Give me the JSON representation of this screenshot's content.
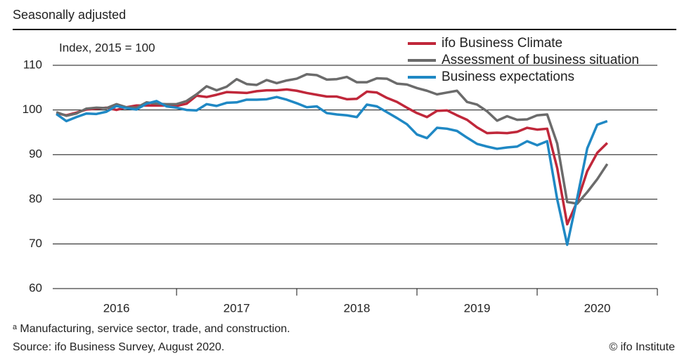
{
  "chart_data": {
    "type": "line",
    "title": "Seasonally adjusted",
    "annotation": "Index, 2015 = 100",
    "footnote": "ᵃ Manufacturing, service sector, trade, and construction.",
    "source": "Source: ifo Business Survey, August 2020.",
    "copyright": "© ifo Institute",
    "x": [
      2016,
      2016.0833,
      2016.1667,
      2016.25,
      2016.3333,
      2016.4167,
      2016.5,
      2016.5833,
      2016.6667,
      2016.75,
      2016.8333,
      2016.9167,
      2017,
      2017.0833,
      2017.1667,
      2017.25,
      2017.3333,
      2017.4167,
      2017.5,
      2017.5833,
      2017.6667,
      2017.75,
      2017.8333,
      2017.9167,
      2018,
      2018.0833,
      2018.1667,
      2018.25,
      2018.3333,
      2018.4167,
      2018.5,
      2018.5833,
      2018.6667,
      2018.75,
      2018.8333,
      2018.9167,
      2019,
      2019.0833,
      2019.1667,
      2019.25,
      2019.3333,
      2019.4167,
      2019.5,
      2019.5833,
      2019.6667,
      2019.75,
      2019.8333,
      2019.9167,
      2020,
      2020.0833,
      2020.1667,
      2020.25,
      2020.3333,
      2020.4167,
      2020.5,
      2020.5833
    ],
    "xlim": [
      2015.97,
      2021
    ],
    "xticks": [
      {
        "value": 2016.5,
        "label": "2016"
      },
      {
        "value": 2017.5,
        "label": "2017"
      },
      {
        "value": 2018.5,
        "label": "2018"
      },
      {
        "value": 2019.5,
        "label": "2019"
      },
      {
        "value": 2020.5,
        "label": "2020"
      }
    ],
    "ylim": [
      60,
      110
    ],
    "yticks": [
      60,
      70,
      80,
      90,
      100,
      110
    ],
    "grid": true,
    "legend": "top-right",
    "series": [
      {
        "name": "ifo Business Climate",
        "color": "#c0273a",
        "values": [
          99.3,
          98.8,
          99.4,
          100.1,
          100.3,
          100.5,
          100.0,
          100.6,
          101.0,
          101.0,
          101.0,
          101.0,
          100.9,
          101.4,
          103.2,
          102.9,
          103.4,
          104.0,
          103.9,
          103.8,
          104.2,
          104.4,
          104.4,
          104.6,
          104.3,
          103.8,
          103.4,
          103.0,
          103.0,
          102.4,
          102.5,
          104.1,
          103.9,
          102.7,
          101.8,
          100.5,
          99.3,
          98.4,
          99.8,
          99.9,
          98.8,
          97.8,
          96.1,
          94.8,
          94.9,
          94.8,
          95.1,
          96.0,
          95.6,
          95.8,
          87.0,
          74.4,
          79.5,
          86.3,
          90.4,
          92.6
        ]
      },
      {
        "name": "Assessment of business situation",
        "color": "#6b6b6b",
        "values": [
          99.5,
          98.7,
          99.2,
          100.3,
          100.5,
          100.4,
          101.3,
          100.6,
          100.5,
          101.7,
          101.4,
          101.3,
          101.3,
          102.0,
          103.5,
          105.3,
          104.4,
          105.2,
          106.9,
          105.8,
          105.6,
          106.7,
          106.0,
          106.6,
          107.0,
          108.0,
          107.8,
          106.8,
          106.9,
          107.4,
          106.2,
          106.2,
          107.1,
          107.0,
          105.9,
          105.7,
          104.9,
          104.3,
          103.5,
          103.9,
          104.3,
          101.8,
          101.2,
          99.7,
          97.6,
          98.6,
          97.8,
          97.9,
          98.8,
          99.0,
          92.5,
          79.4,
          79.0,
          81.6,
          84.5,
          87.9
        ]
      },
      {
        "name": "Business expectations",
        "color": "#1f88c4",
        "values": [
          99.1,
          97.5,
          98.4,
          99.2,
          99.1,
          99.6,
          100.9,
          100.4,
          100.1,
          101.4,
          102.0,
          100.8,
          100.5,
          100.0,
          99.9,
          101.3,
          100.9,
          101.6,
          101.7,
          102.3,
          102.3,
          102.4,
          102.9,
          102.3,
          101.5,
          100.6,
          100.8,
          99.3,
          99.0,
          98.8,
          98.4,
          101.2,
          100.8,
          99.5,
          98.2,
          96.8,
          94.5,
          93.7,
          96.0,
          95.8,
          95.3,
          93.8,
          92.4,
          91.8,
          91.3,
          91.6,
          91.8,
          93.0,
          92.1,
          93.0,
          80.0,
          69.8,
          80.3,
          91.4,
          96.7,
          97.5
        ]
      }
    ]
  }
}
